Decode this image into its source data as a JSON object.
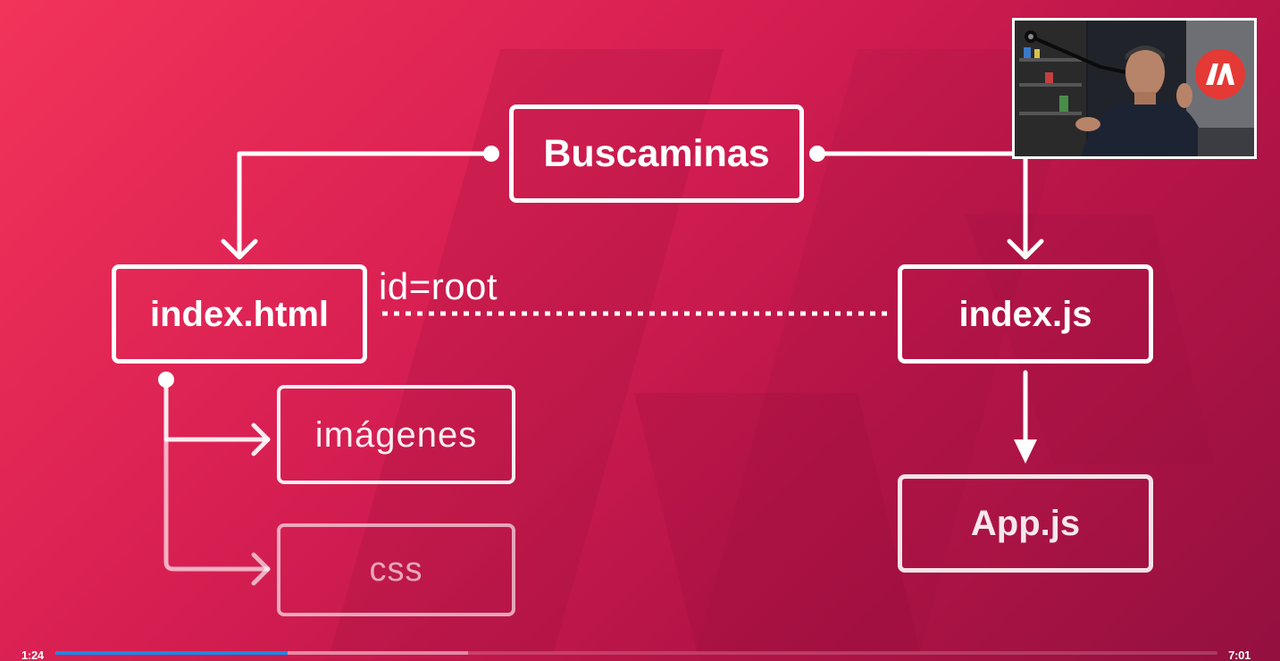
{
  "diagram": {
    "nodes": {
      "buscaminas": "Buscaminas",
      "index_html": "index.html",
      "index_js": "index.js",
      "app_js": "App.js",
      "imagenes": "imágenes",
      "css": "css"
    },
    "edge_label": "id=root"
  },
  "player": {
    "current_time": "1:24",
    "total_time": "7:01",
    "played_fraction": 0.2,
    "buffered_fraction": 0.355,
    "progress_color": "#1e88e5"
  },
  "colors": {
    "background_light": "#f2345a",
    "background_dark": "#93103f",
    "foreground": "#ffffff"
  },
  "icons": {
    "webcam": "presenter-webcam-icon",
    "logo": "brand-logo-icon"
  }
}
